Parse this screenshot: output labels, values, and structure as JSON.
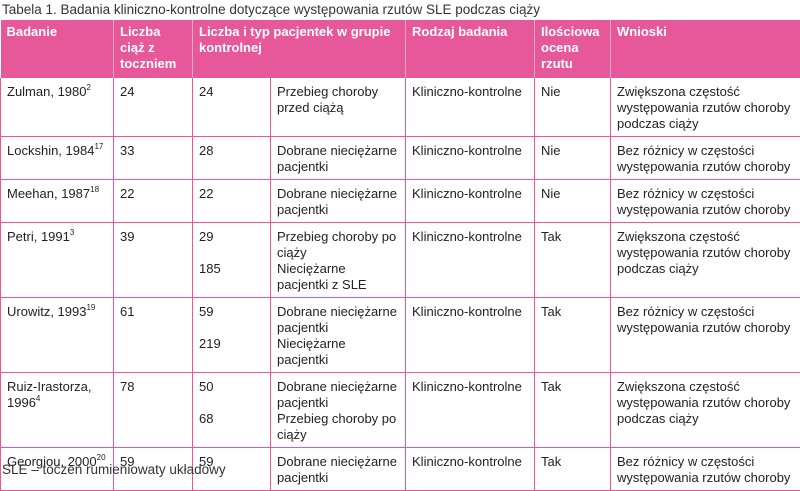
{
  "caption": "Tabela 1. Badania kliniczno-kontrolne dotyczące występowania rzutów SLE podczas ciąży",
  "headers": {
    "study": "Badanie",
    "pregnancies": "Liczba ciąż z toczniem",
    "controls": "Liczba i typ pacjentek w grupie kontrolnej",
    "type": "Rodzaj badania",
    "quant": "Ilościowa ocena rzutu",
    "conclusions": "Wnioski"
  },
  "rows": [
    {
      "study": "Zulman, 1980",
      "ref": "2",
      "preg": "24",
      "c1": "24",
      "t1": "Przebieg choroby przed ciążą",
      "c2": "",
      "t2": "",
      "type": "Kliniczno-kontrolne",
      "quant": "Nie",
      "concl": "Zwiększona częstość występowania rzutów choroby podczas ciąży"
    },
    {
      "study": "Lockshin, 1984",
      "ref": "17",
      "preg": "33",
      "c1": "28",
      "t1": "Dobrane nieciężarne pacjentki",
      "c2": "",
      "t2": "",
      "type": "Kliniczno-kontrolne",
      "quant": "Nie",
      "concl": "Bez różnicy w częstości występowania rzutów choroby"
    },
    {
      "study": "Meehan, 1987",
      "ref": "18",
      "preg": "22",
      "c1": "22",
      "t1": "Dobrane nieciężarne pacjentki",
      "c2": "",
      "t2": "",
      "type": "Kliniczno-kontrolne",
      "quant": "Nie",
      "concl": "Bez różnicy w częstości występowania rzutów choroby"
    },
    {
      "study": "Petri, 1991",
      "ref": "3",
      "preg": "39",
      "c1": "29",
      "t1": "Przebieg choroby po ciąży",
      "c2": "185",
      "t2": "Nieciężarne pacjentki z SLE",
      "type": "Kliniczno-kontrolne",
      "quant": "Tak",
      "concl": "Zwiększona częstość występowania rzutów choroby podczas ciąży"
    },
    {
      "study": "Urowitz, 1993",
      "ref": "19",
      "preg": "61",
      "c1": "59",
      "t1": "Dobrane nieciężarne pacjentki",
      "c2": "219",
      "t2": "Nieciężarne pacjentki",
      "type": "Kliniczno-kontrolne",
      "quant": "Tak",
      "concl": "Bez różnicy w częstości występowania rzutów choroby"
    },
    {
      "study": "Ruiz-Irastorza, 1996",
      "ref": "4",
      "preg": "78",
      "c1": "50",
      "t1": "Dobrane nieciężarne pacjentki",
      "c2": "68",
      "t2": "Przebieg choroby po ciąży",
      "type": "Kliniczno-kontrolne",
      "quant": "Tak",
      "concl": "Zwiększona częstość występowania rzutów choroby podczas ciąży"
    },
    {
      "study": "Georgiou, 2000",
      "ref": "20",
      "preg": "59",
      "c1": "59",
      "t1": "Dobrane nieciężarne pacjentki",
      "c2": "",
      "t2": "",
      "type": "Kliniczno-kontrolne",
      "quant": "Tak",
      "concl": "Bez różnicy w częstości występowania rzutów choroby"
    }
  ],
  "footnote": "SLE – toczeń rumieniowaty układowy",
  "colors": {
    "header_bg": "#e6589a",
    "header_text": "#ffffff",
    "border": "#e6589a"
  }
}
